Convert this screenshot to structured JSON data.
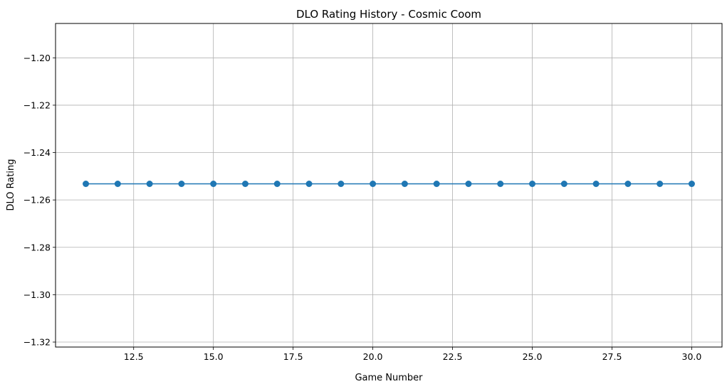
{
  "chart_data": {
    "type": "line",
    "title": "DLO Rating History - Cosmic Coom",
    "xlabel": "Game Number",
    "ylabel": "DLO Rating",
    "xlim": [
      10.05,
      30.95
    ],
    "ylim": [
      -1.3221,
      -1.1855
    ],
    "x_ticks": [
      12.5,
      15.0,
      17.5,
      20.0,
      22.5,
      25.0,
      27.5,
      30.0
    ],
    "x_tick_labels": [
      "12.5",
      "15.0",
      "17.5",
      "20.0",
      "22.5",
      "25.0",
      "27.5",
      "30.0"
    ],
    "y_ticks": [
      -1.32,
      -1.3,
      -1.28,
      -1.26,
      -1.24,
      -1.22,
      -1.2
    ],
    "y_tick_labels": [
      "−1.32",
      "−1.30",
      "−1.28",
      "−1.26",
      "−1.24",
      "−1.22",
      "−1.20"
    ],
    "grid": true,
    "series": [
      {
        "color": "#1f77b4",
        "marker": "circle",
        "x": [
          11,
          12,
          13,
          14,
          15,
          16,
          17,
          18,
          19,
          20,
          21,
          22,
          23,
          24,
          25,
          26,
          27,
          28,
          29,
          30
        ],
        "y": [
          -1.2532,
          -1.2532,
          -1.2532,
          -1.2532,
          -1.2532,
          -1.2532,
          -1.2532,
          -1.2532,
          -1.2532,
          -1.2532,
          -1.2532,
          -1.2532,
          -1.2532,
          -1.2532,
          -1.2532,
          -1.2532,
          -1.2532,
          -1.2532,
          -1.2532,
          -1.2532
        ]
      }
    ]
  }
}
